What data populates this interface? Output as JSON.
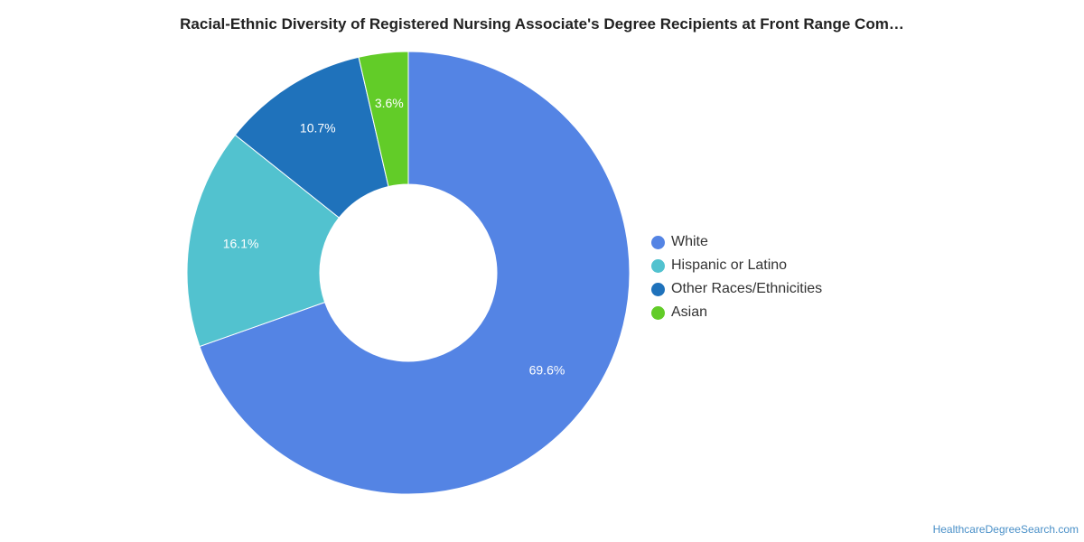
{
  "chart_data": {
    "type": "pie",
    "variant": "donut",
    "title": "Racial-Ethnic Diversity of Registered Nursing Associate's Degree Recipients at Front Range Com…",
    "legend_position": "right",
    "series": [
      {
        "name": "White",
        "value": 69.6,
        "label": "69.6%",
        "color": "#5484e4"
      },
      {
        "name": "Hispanic or Latino",
        "value": 16.1,
        "label": "16.1%",
        "color": "#52c2cf"
      },
      {
        "name": "Other Races/Ethnicities",
        "value": 10.7,
        "label": "10.7%",
        "color": "#1f72bb"
      },
      {
        "name": "Asian",
        "value": 3.6,
        "label": "3.6%",
        "color": "#62cc28"
      }
    ]
  },
  "credit": "HealthcareDegreeSearch.com"
}
